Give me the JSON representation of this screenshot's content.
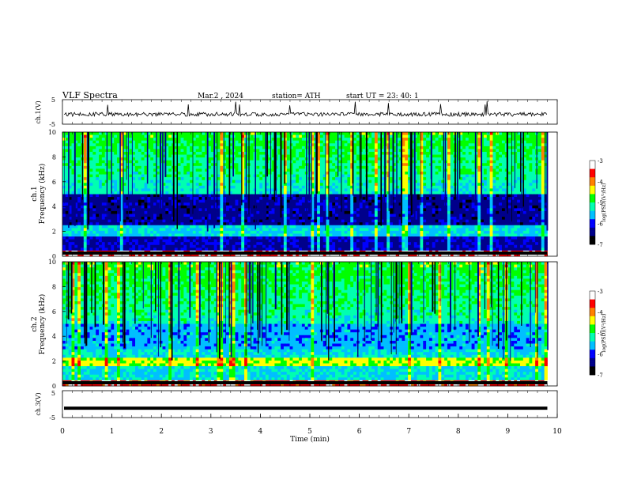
{
  "header": {
    "title": "VLF Spectra",
    "date": "Mar.2 , 2024",
    "station": "station= ATH",
    "start": "start UT = 23: 40: 1"
  },
  "chart_data": [
    {
      "type": "line",
      "panel": "ch1-waveform",
      "ylabel": "ch.1(V)",
      "ylim": [
        -5,
        5
      ],
      "yticks": [
        "5",
        "-5"
      ],
      "xlim": [
        0,
        10
      ],
      "description_values": {
        "baseline": 0,
        "typical_spike_peak": 4.5
      }
    },
    {
      "type": "heatmap",
      "panel": "ch1-spectrogram",
      "ylabel_top": "ch.1",
      "ylabel": "Frequency (kHz)",
      "ylim": [
        0,
        10
      ],
      "yticks": [
        "0",
        "2",
        "4",
        "6",
        "8",
        "10"
      ],
      "xlim": [
        0,
        10
      ],
      "data_end_min": 9.8,
      "colorbar": {
        "label": "log(PSD)(V²/Hz)",
        "range": [
          -7,
          -3
        ],
        "ticks": [
          "-3",
          "-4",
          "-5",
          "-6",
          "-7"
        ]
      }
    },
    {
      "type": "heatmap",
      "panel": "ch2-spectrogram",
      "ylabel_top": "ch.2",
      "ylabel": "Frequency (kHz)",
      "ylim": [
        0,
        10
      ],
      "yticks": [
        "0",
        "2",
        "4",
        "6",
        "8",
        "10"
      ],
      "xlim": [
        0,
        10
      ],
      "data_end_min": 9.8,
      "colorbar": {
        "label": "log(PSD)(V²/Hz)",
        "range": [
          -7,
          -3
        ],
        "ticks": [
          "-3",
          "-4",
          "-5",
          "-6",
          "-7"
        ]
      }
    },
    {
      "type": "line",
      "panel": "ch3-waveform",
      "ylabel": "ch.3(V)",
      "ylim": [
        -5,
        5
      ],
      "yticks": [
        "5",
        "-5"
      ],
      "xlim": [
        0,
        10
      ],
      "xlabel": "Time (min)",
      "xticks": [
        "0",
        "1",
        "2",
        "3",
        "4",
        "5",
        "6",
        "7",
        "8",
        "9",
        "10"
      ],
      "constant_value": -1.5
    }
  ],
  "colors": {
    "background": "#ffffff",
    "axis": "#000000",
    "waveform": "#000000",
    "scale": [
      "#000000",
      "#00008b",
      "#0000ff",
      "#00bfff",
      "#00ffb0",
      "#00ff00",
      "#ffff00",
      "#ff8000",
      "#ff0000",
      "#ffffff"
    ]
  }
}
